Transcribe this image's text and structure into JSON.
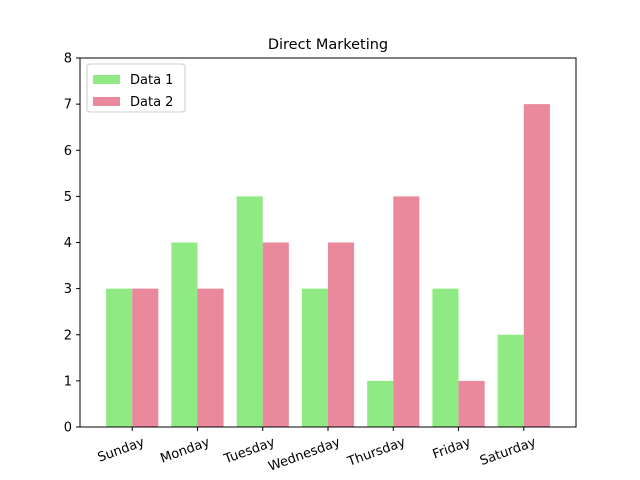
{
  "chart_data": {
    "type": "bar",
    "title": "Direct Marketing",
    "xlabel": "",
    "ylabel": "",
    "categories": [
      "Sunday",
      "Monday",
      "Tuesday",
      "Wednesday",
      "Thursday",
      "Friday",
      "Saturday"
    ],
    "series": [
      {
        "name": "Data 1",
        "color": "#90ea84",
        "values": [
          3,
          4,
          5,
          3,
          1,
          3,
          2
        ]
      },
      {
        "name": "Data 2",
        "color": "#ea889c",
        "values": [
          3,
          3,
          4,
          4,
          5,
          1,
          7
        ]
      }
    ],
    "ylim": [
      0,
      8
    ],
    "yticks": [
      0,
      1,
      2,
      3,
      4,
      5,
      6,
      7,
      8
    ],
    "grid": false,
    "legend_position": "top-left",
    "x_tick_rotation_deg": 20
  }
}
